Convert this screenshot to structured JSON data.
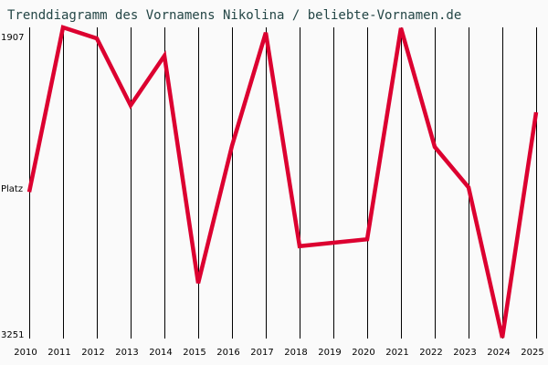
{
  "title": "Trenddiagramm des Vornamens Nikolina / beliebte-Vornamen.de",
  "colors": {
    "background": "#fafafa",
    "line": "#dc0030",
    "grid": "#000000",
    "title": "#244646"
  },
  "y_axis": {
    "top_label": "1907",
    "middle_label": "Platz",
    "bottom_label": "3251"
  },
  "chart_data": {
    "type": "line",
    "title": "Trenddiagramm des Vornamens Nikolina / beliebte-Vornamen.de",
    "xlabel": "",
    "ylabel": "Platz",
    "ylim": [
      3251,
      1907
    ],
    "y_inverted": true,
    "grid": "vertical",
    "legend": null,
    "categories": [
      "2010",
      "2011",
      "2012",
      "2013",
      "2014",
      "2015",
      "2016",
      "2017",
      "2018",
      "2019",
      "2020",
      "2021",
      "2022",
      "2023",
      "2024",
      "2025"
    ],
    "series": [
      {
        "name": "Nikolina",
        "values": [
          2620,
          1907,
          1955,
          2245,
          2030,
          3015,
          2420,
          1930,
          2855,
          2840,
          2825,
          1910,
          2425,
          2600,
          3251,
          2275
        ]
      }
    ]
  }
}
